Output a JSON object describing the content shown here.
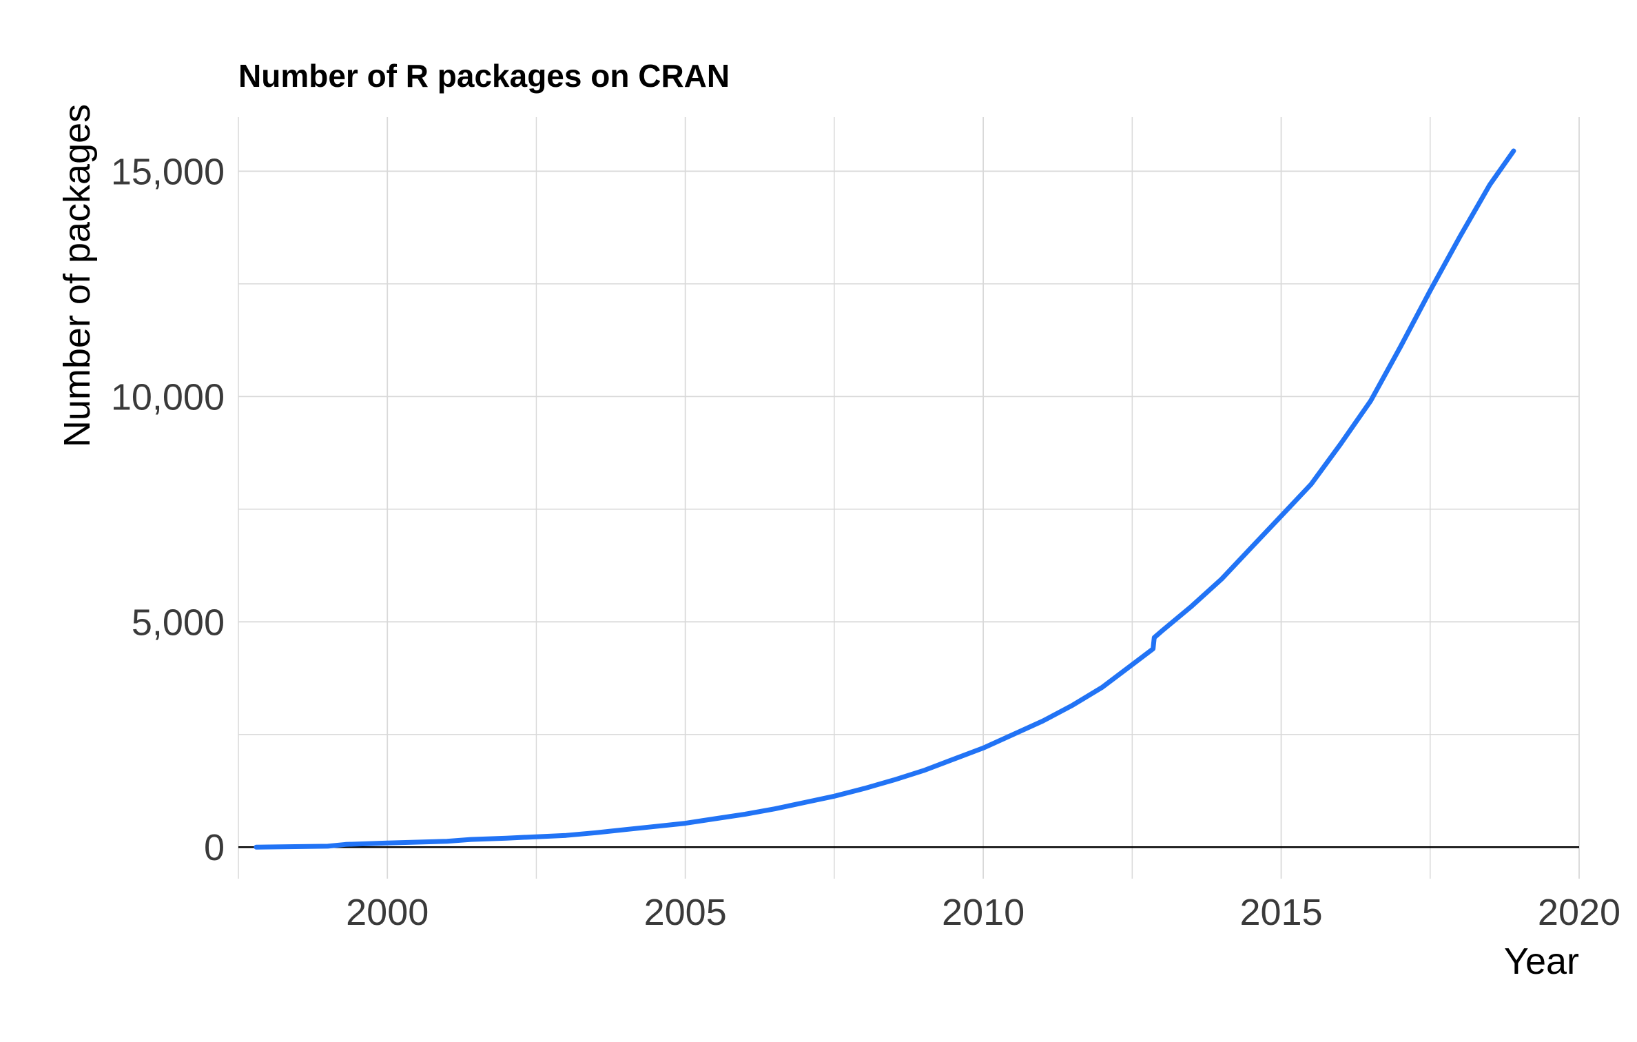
{
  "chart_data": {
    "type": "line",
    "title": "Number of R packages on CRAN",
    "xlabel": "Year",
    "ylabel": "Number of packages",
    "xlim": [
      1997.5,
      2020
    ],
    "ylim": [
      -700,
      16200
    ],
    "x_ticks": [
      2000,
      2005,
      2010,
      2015,
      2020
    ],
    "x_tick_labels": [
      "2000",
      "2005",
      "2010",
      "2015",
      "2020"
    ],
    "x_minor_ticks": [
      1997.5,
      2002.5,
      2007.5,
      2012.5,
      2017.5
    ],
    "y_ticks": [
      0,
      5000,
      10000,
      15000
    ],
    "y_tick_labels": [
      "0",
      "5,000",
      "10,000",
      "15,000"
    ],
    "y_minor_ticks": [
      2500,
      7500,
      12500
    ],
    "grid": true,
    "legend": "none",
    "colors": {
      "line": "#2173f5",
      "grid": "#d9d9d9",
      "zero_line": "#000000"
    },
    "series": [
      {
        "x": [
          1997.8,
          1999.0,
          1999.3,
          2000.0,
          2001.0,
          2001.4,
          2002.0,
          2002.5,
          2003.0,
          2003.5,
          2004.0,
          2004.5,
          2005.0,
          2005.5,
          2006.0,
          2006.5,
          2007.0,
          2007.5,
          2008.0,
          2008.5,
          2009.0,
          2009.5,
          2010.0,
          2010.5,
          2011.0,
          2011.5,
          2012.0,
          2012.5,
          2012.85,
          2012.87,
          2013.0,
          2013.5,
          2014.0,
          2014.5,
          2015.0,
          2015.5,
          2016.0,
          2016.5,
          2017.0,
          2017.5,
          2018.0,
          2018.5,
          2018.9
        ],
        "y": [
          0,
          20,
          60,
          90,
          130,
          170,
          200,
          230,
          260,
          320,
          390,
          460,
          530,
          630,
          730,
          850,
          990,
          1130,
          1300,
          1490,
          1700,
          1950,
          2200,
          2500,
          2800,
          3150,
          3550,
          4050,
          4400,
          4650,
          4800,
          5350,
          5950,
          6650,
          7350,
          8050,
          8950,
          9900,
          11100,
          12350,
          13550,
          14700,
          15450
        ]
      }
    ]
  }
}
